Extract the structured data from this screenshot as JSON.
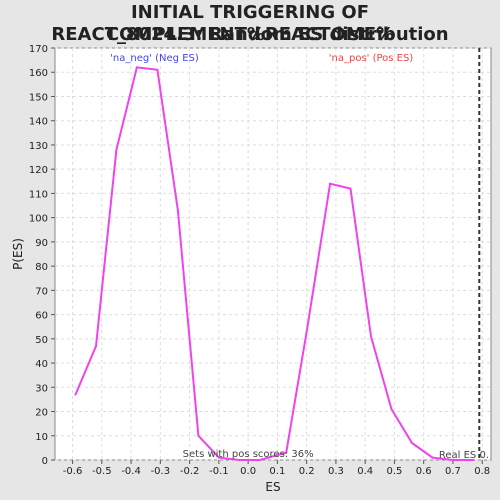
{
  "title_line1": "INITIAL TRIGGERING OF COMPLEMENT%REACTOME%",
  "title_line2": "REACT_8024.3: Random ES distribution",
  "chart_data": {
    "type": "line",
    "title": "INITIAL TRIGGERING OF COMPLEMENT%REACTOME% REACT_8024.3: Random ES distribution",
    "xlabel": "ES",
    "ylabel": "P(ES)",
    "xlim": [
      -0.66,
      0.83
    ],
    "ylim": [
      0,
      170
    ],
    "xticks": [
      -0.6,
      -0.5,
      -0.4,
      -0.3,
      -0.2,
      -0.1,
      0.0,
      0.1,
      0.2,
      0.3,
      0.4,
      0.5,
      0.6,
      0.7,
      0.8
    ],
    "xtick_labels": [
      "-0.6",
      "-0.5",
      "-0.4",
      "-0.3",
      "-0.2",
      "-0.1",
      "0.0",
      "0.1",
      "0.2",
      "0.3",
      "0.4",
      "0.5",
      "0.6",
      "0.7",
      "0.8"
    ],
    "yticks": [
      0,
      10,
      20,
      30,
      40,
      50,
      60,
      70,
      80,
      90,
      100,
      110,
      120,
      130,
      140,
      150,
      160,
      170
    ],
    "grid": true,
    "line_color": "#ee44ee",
    "series": [
      {
        "x": [
          -0.59,
          -0.52,
          -0.45,
          -0.38,
          -0.31,
          -0.24,
          -0.17,
          -0.1,
          -0.03,
          0.04,
          0.13,
          0.2,
          0.28,
          0.35,
          0.42,
          0.49,
          0.56,
          0.63,
          0.7,
          0.77
        ],
        "values": [
          27,
          47,
          128,
          162,
          161,
          103,
          10,
          1,
          0,
          0,
          3,
          53,
          114,
          112,
          51,
          21,
          7,
          1,
          0,
          0
        ]
      }
    ],
    "annotations": {
      "neg_label": "'na_neg' (Neg ES)",
      "neg_color": "#4444ee",
      "pos_label": "'na_pos' (Pos ES)",
      "pos_color": "#ee4444",
      "pos_scores_text": "Sets with pos scores: 36%",
      "real_es_label": "Real ES 0.",
      "real_es_value": 0.79
    }
  }
}
